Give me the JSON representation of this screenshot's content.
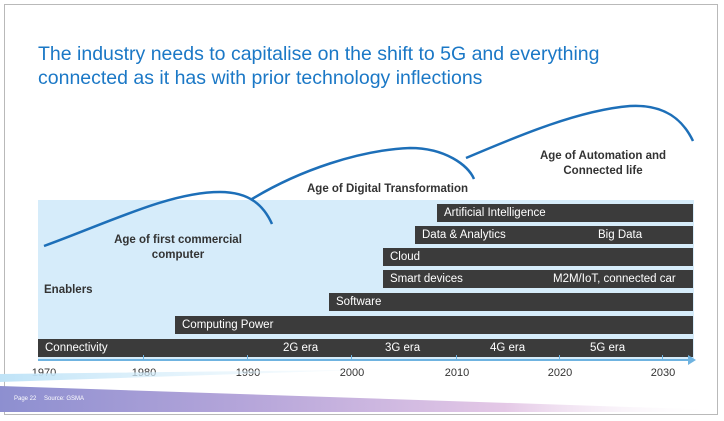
{
  "slide": {
    "title_line1": "The industry needs to capitalise on the shift to 5G and everything",
    "title_line2": "connected as it has with prior technology inflections",
    "enablers_label": "Enablers",
    "ages": [
      {
        "line1": "Age of first commercial",
        "line2": "computer"
      },
      {
        "line1": "Age of Digital Transformation",
        "line2": ""
      },
      {
        "line1": "Age of Automation and",
        "line2": "Connected life"
      }
    ],
    "bars": {
      "ai": "Artificial Intelligence",
      "data_analytics": "Data & Analytics",
      "big_data": "Big Data",
      "cloud": "Cloud",
      "smart_devices": "Smart devices",
      "m2m": "M2M/IoT, connected car",
      "software": "Software",
      "computing_power": "Computing Power",
      "connectivity": "Connectivity"
    },
    "eras": [
      "2G era",
      "3G era",
      "4G era",
      "5G era"
    ],
    "years": [
      "1970",
      "1980",
      "1990",
      "2000",
      "2010",
      "2020",
      "2030"
    ],
    "footer": {
      "page": "Page 22",
      "source": "Source: GSMA"
    }
  },
  "colors": {
    "title_blue": "#1b78c6",
    "bar_dark": "#3b3b3b",
    "enablers_bg": "#d6ecfa",
    "curve_blue": "#1d6fb8",
    "axis_blue": "#6fb3e0"
  }
}
